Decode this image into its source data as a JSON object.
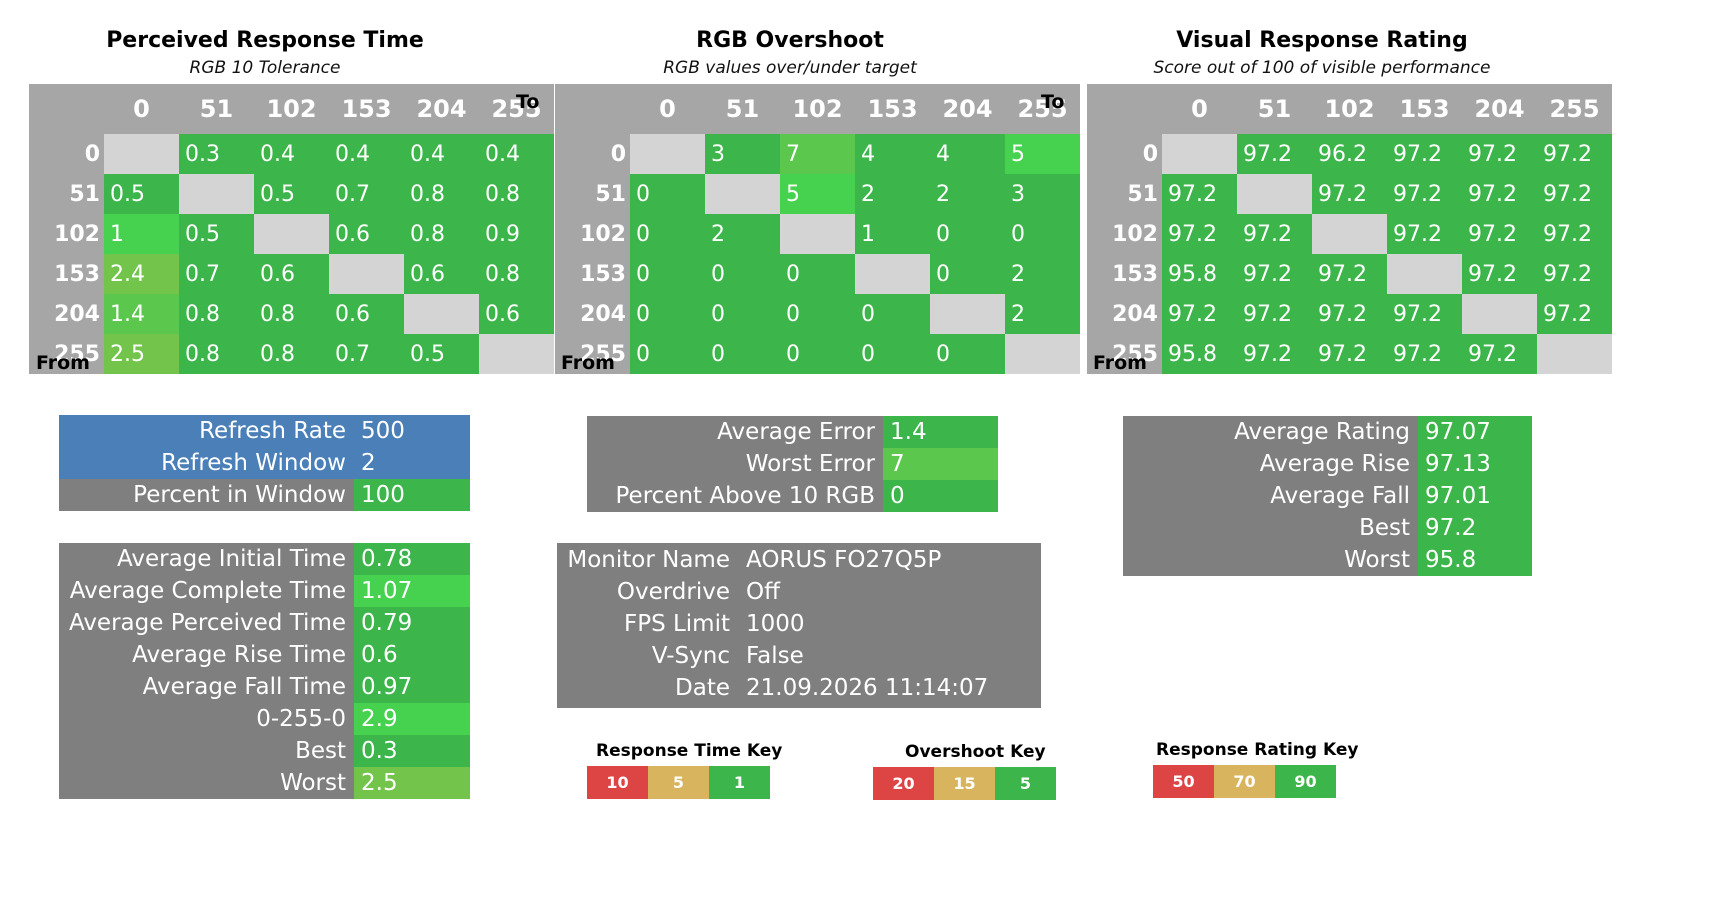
{
  "colors": {
    "good": "#3cb54a",
    "bright_green": "#46d14f",
    "light_green": "#72c54a",
    "mid_green": "#5bc84d",
    "diag": "#d4d4d4",
    "header_gray": "#a6a6a6",
    "panel_gray": "#7f7f7f",
    "blue": "#4a7fb8",
    "key_red": "#dd4444",
    "key_yellow": "#d9b45e",
    "key_green": "#3cb54a"
  },
  "labels": {
    "to": "To",
    "from": "From"
  },
  "panels": [
    {
      "title": "Perceived Response Time",
      "subtitle": "RGB 10 Tolerance",
      "cols": [
        "0",
        "51",
        "102",
        "153",
        "204",
        "255"
      ],
      "rows": [
        {
          "label": "0",
          "cells": [
            "",
            "0.3",
            "0.4",
            "0.4",
            "0.4",
            "0.4"
          ]
        },
        {
          "label": "51",
          "cells": [
            "0.5",
            "",
            "0.5",
            "0.7",
            "0.8",
            "0.8"
          ]
        },
        {
          "label": "102",
          "cells": [
            "1",
            "0.5",
            "",
            "0.6",
            "0.8",
            "0.9"
          ]
        },
        {
          "label": "153",
          "cells": [
            "2.4",
            "0.7",
            "0.6",
            "",
            "0.6",
            "0.8"
          ]
        },
        {
          "label": "204",
          "cells": [
            "1.4",
            "0.8",
            "0.8",
            "0.6",
            "",
            "0.6"
          ]
        },
        {
          "label": "255",
          "cells": [
            "2.5",
            "0.8",
            "0.8",
            "0.7",
            "0.5",
            ""
          ]
        }
      ]
    },
    {
      "title": "RGB Overshoot",
      "subtitle": "RGB values over/under target",
      "cols": [
        "0",
        "51",
        "102",
        "153",
        "204",
        "255"
      ],
      "rows": [
        {
          "label": "0",
          "cells": [
            "",
            "3",
            "7",
            "4",
            "4",
            "5"
          ]
        },
        {
          "label": "51",
          "cells": [
            "0",
            "",
            "5",
            "2",
            "2",
            "3"
          ]
        },
        {
          "label": "102",
          "cells": [
            "0",
            "2",
            "",
            "1",
            "0",
            "0"
          ]
        },
        {
          "label": "153",
          "cells": [
            "0",
            "0",
            "0",
            "",
            "0",
            "2"
          ]
        },
        {
          "label": "204",
          "cells": [
            "0",
            "0",
            "0",
            "0",
            "",
            "2"
          ]
        },
        {
          "label": "255",
          "cells": [
            "0",
            "0",
            "0",
            "0",
            "0",
            ""
          ]
        }
      ]
    },
    {
      "title": "Visual Response Rating",
      "subtitle": "Score out of 100 of visible performance",
      "cols": [
        "0",
        "51",
        "102",
        "153",
        "204",
        "255"
      ],
      "rows": [
        {
          "label": "0",
          "cells": [
            "",
            "97.2",
            "96.2",
            "97.2",
            "97.2",
            "97.2"
          ]
        },
        {
          "label": "51",
          "cells": [
            "97.2",
            "",
            "97.2",
            "97.2",
            "97.2",
            "97.2"
          ]
        },
        {
          "label": "102",
          "cells": [
            "97.2",
            "97.2",
            "",
            "97.2",
            "97.2",
            "97.2"
          ]
        },
        {
          "label": "153",
          "cells": [
            "95.8",
            "97.2",
            "97.2",
            "",
            "97.2",
            "97.2"
          ]
        },
        {
          "label": "204",
          "cells": [
            "97.2",
            "97.2",
            "97.2",
            "97.2",
            "",
            "97.2"
          ]
        },
        {
          "label": "255",
          "cells": [
            "95.8",
            "97.2",
            "97.2",
            "97.2",
            "97.2",
            ""
          ]
        }
      ]
    }
  ],
  "refresh": [
    {
      "label": "Refresh Rate",
      "value": "500"
    },
    {
      "label": "Refresh Window",
      "value": "2"
    },
    {
      "label": "Percent in Window",
      "value": "100"
    }
  ],
  "times": [
    {
      "label": "Average Initial Time",
      "value": "0.78"
    },
    {
      "label": "Average Complete Time",
      "value": "1.07"
    },
    {
      "label": "Average Perceived Time",
      "value": "0.79"
    },
    {
      "label": "Average Rise Time",
      "value": "0.6"
    },
    {
      "label": "Average Fall Time",
      "value": "0.97"
    },
    {
      "label": "0-255-0",
      "value": "2.9"
    },
    {
      "label": "Best",
      "value": "0.3"
    },
    {
      "label": "Worst",
      "value": "2.5"
    }
  ],
  "errors": [
    {
      "label": "Average Error",
      "value": "1.4"
    },
    {
      "label": "Worst Error",
      "value": "7"
    },
    {
      "label": "Percent Above 10 RGB",
      "value": "0"
    }
  ],
  "monitor": [
    {
      "label": "Monitor Name",
      "value": "AORUS FO27Q5P"
    },
    {
      "label": "Overdrive",
      "value": "Off"
    },
    {
      "label": "FPS Limit",
      "value": "1000"
    },
    {
      "label": "V-Sync",
      "value": "False"
    },
    {
      "label": "Date",
      "value": "21.09.2026 11:14:07"
    }
  ],
  "ratings": [
    {
      "label": "Average Rating",
      "value": "97.07"
    },
    {
      "label": "Average Rise",
      "value": "97.13"
    },
    {
      "label": "Average Fall",
      "value": "97.01"
    },
    {
      "label": "Best",
      "value": "97.2"
    },
    {
      "label": "Worst",
      "value": "95.8"
    }
  ],
  "keys": [
    {
      "title": "Response Time Key",
      "values": [
        "10",
        "5",
        "1"
      ]
    },
    {
      "title": "Overshoot Key",
      "values": [
        "20",
        "15",
        "5"
      ]
    },
    {
      "title": "Response Rating Key",
      "values": [
        "50",
        "70",
        "90"
      ]
    }
  ]
}
